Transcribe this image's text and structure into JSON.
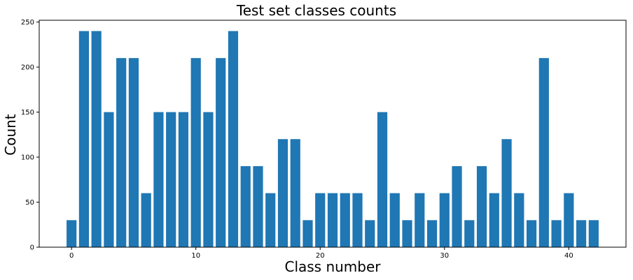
{
  "chart_data": {
    "type": "bar",
    "title": "Test set classes counts",
    "xlabel": "Class number",
    "ylabel": "Count",
    "x": [
      0,
      1,
      2,
      3,
      4,
      5,
      6,
      7,
      8,
      9,
      10,
      11,
      12,
      13,
      14,
      15,
      16,
      17,
      18,
      19,
      20,
      21,
      22,
      23,
      24,
      25,
      26,
      27,
      28,
      29,
      30,
      31,
      32,
      33,
      34,
      35,
      36,
      37,
      38,
      39,
      40,
      41,
      42
    ],
    "values": [
      30,
      240,
      240,
      150,
      210,
      210,
      60,
      150,
      150,
      150,
      210,
      150,
      210,
      240,
      90,
      90,
      60,
      120,
      120,
      30,
      60,
      60,
      60,
      60,
      30,
      150,
      60,
      30,
      60,
      30,
      60,
      90,
      30,
      90,
      60,
      120,
      60,
      30,
      210,
      30,
      60,
      30,
      30
    ],
    "xlim": [
      -2.6,
      44.6
    ],
    "ylim": [
      0,
      252
    ],
    "xticks": [
      0,
      10,
      20,
      30,
      40
    ],
    "yticks": [
      0,
      50,
      100,
      150,
      200,
      250
    ],
    "bar_color": "#1f77b4",
    "grid": false,
    "legend": "none"
  }
}
